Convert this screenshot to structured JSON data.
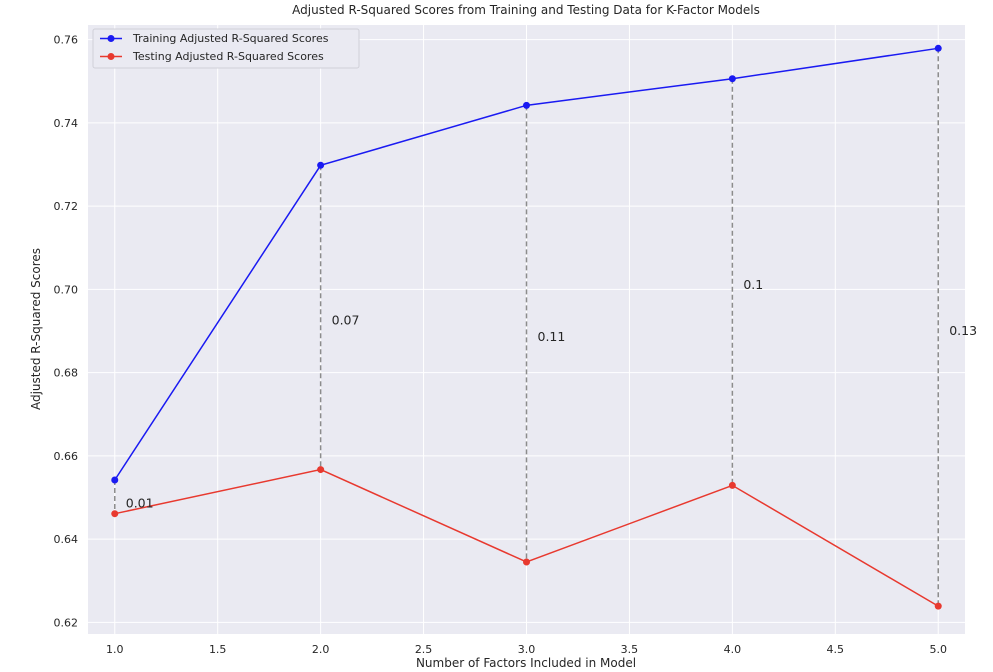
{
  "chart_data": {
    "type": "line",
    "title": "Adjusted R-Squared Scores from Training and Testing Data for K-Factor Models",
    "xlabel": "Number of Factors Included in Model",
    "ylabel": "Adjusted R-Squared Scores",
    "x": [
      1.0,
      2.0,
      3.0,
      4.0,
      5.0
    ],
    "xlim": [
      0.87,
      5.13
    ],
    "ylim": [
      0.6172,
      0.7635
    ],
    "xticks": [
      1.0,
      1.5,
      2.0,
      2.5,
      3.0,
      3.5,
      4.0,
      4.5,
      5.0
    ],
    "xtick_labels": [
      "1.0",
      "1.5",
      "2.0",
      "2.5",
      "3.0",
      "3.5",
      "4.0",
      "4.5",
      "5.0"
    ],
    "yticks": [
      0.62,
      0.64,
      0.66,
      0.68,
      0.7,
      0.72,
      0.74,
      0.76
    ],
    "ytick_labels": [
      "0.62",
      "0.64",
      "0.66",
      "0.68",
      "0.70",
      "0.72",
      "0.74",
      "0.76"
    ],
    "grid": true,
    "legend_position": "top-left",
    "colors": {
      "plot_background": "#eaeaf2",
      "grid": "#ffffff",
      "training": "#1a1af2",
      "testing": "#e8392f",
      "gap_line": "#8c8c8c"
    },
    "series": [
      {
        "name": "Training Adjusted R-Squared Scores",
        "values": [
          0.6542,
          0.7298,
          0.7442,
          0.7506,
          0.7579
        ]
      },
      {
        "name": "Testing Adjusted R-Squared Scores",
        "values": [
          0.6461,
          0.6567,
          0.6345,
          0.6529,
          0.6239
        ]
      }
    ],
    "annotations": [
      {
        "x": 1.0,
        "y": 0.6486,
        "text": "0.01"
      },
      {
        "x": 2.0,
        "y": 0.6925,
        "text": "0.07"
      },
      {
        "x": 3.0,
        "y": 0.6885,
        "text": "0.11"
      },
      {
        "x": 4.0,
        "y": 0.701,
        "text": "0.1"
      },
      {
        "x": 5.0,
        "y": 0.69,
        "text": "0.13"
      }
    ]
  }
}
